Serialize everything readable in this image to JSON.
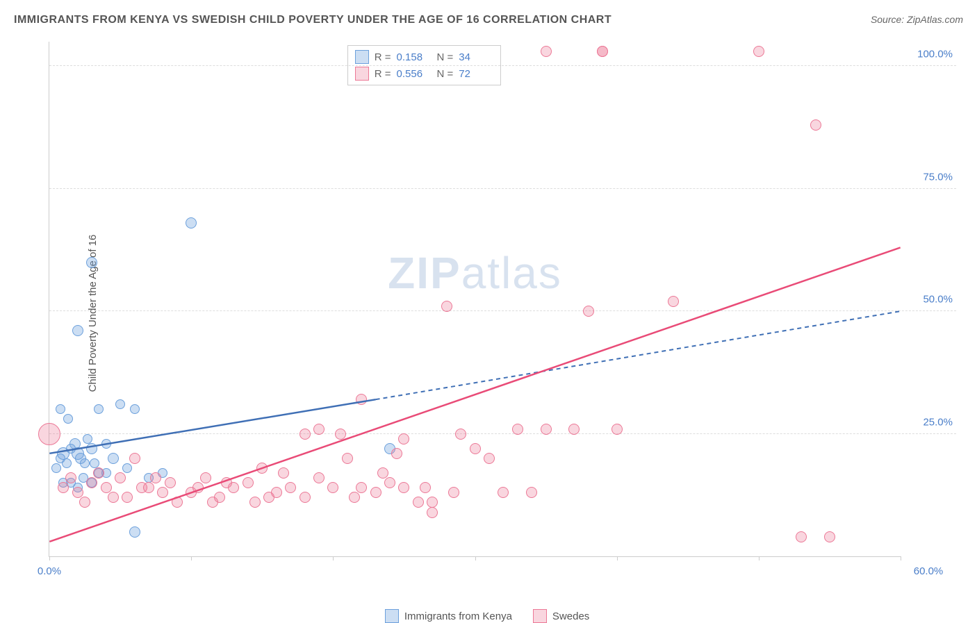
{
  "title": "IMMIGRANTS FROM KENYA VS SWEDISH CHILD POVERTY UNDER THE AGE OF 16 CORRELATION CHART",
  "source": "Source: ZipAtlas.com",
  "ylabel": "Child Poverty Under the Age of 16",
  "watermark_a": "ZIP",
  "watermark_b": "atlas",
  "chart": {
    "type": "scatter",
    "xlim": [
      0,
      60
    ],
    "ylim": [
      0,
      105
    ],
    "yticks": [
      25,
      50,
      75,
      100
    ],
    "ytick_labels": [
      "25.0%",
      "50.0%",
      "75.0%",
      "100.0%"
    ],
    "xticks": [
      0,
      10,
      20,
      30,
      40,
      50,
      60
    ],
    "xlabel_start": "0.0%",
    "xlabel_end": "60.0%",
    "background_color": "#ffffff",
    "grid_color": "#dddddd",
    "axis_color": "#cccccc"
  },
  "series": [
    {
      "name": "Immigrants from Kenya",
      "fill": "rgba(108,160,220,0.35)",
      "stroke": "#6ca0dc",
      "r_value": "0.158",
      "n_value": "34",
      "trend": {
        "x1": 0,
        "y1": 21,
        "x2": 23,
        "y2": 32,
        "extend_x": 60,
        "extend_y": 50,
        "color": "#3f6fb5",
        "dash": true
      },
      "points": [
        {
          "x": 0.5,
          "y": 18,
          "r": 7
        },
        {
          "x": 0.8,
          "y": 20,
          "r": 7
        },
        {
          "x": 1,
          "y": 21,
          "r": 9
        },
        {
          "x": 1.2,
          "y": 19,
          "r": 7
        },
        {
          "x": 1.5,
          "y": 22,
          "r": 7
        },
        {
          "x": 1.8,
          "y": 23,
          "r": 8
        },
        {
          "x": 2,
          "y": 21,
          "r": 9
        },
        {
          "x": 2.2,
          "y": 20,
          "r": 8
        },
        {
          "x": 2.5,
          "y": 19,
          "r": 7
        },
        {
          "x": 3,
          "y": 22,
          "r": 8
        },
        {
          "x": 3.5,
          "y": 17,
          "r": 7
        },
        {
          "x": 1.3,
          "y": 28,
          "r": 7
        },
        {
          "x": 0.8,
          "y": 30,
          "r": 7
        },
        {
          "x": 2,
          "y": 46,
          "r": 8
        },
        {
          "x": 3,
          "y": 60,
          "r": 8
        },
        {
          "x": 10,
          "y": 68,
          "r": 8
        },
        {
          "x": 1,
          "y": 15,
          "r": 7
        },
        {
          "x": 2,
          "y": 14,
          "r": 7
        },
        {
          "x": 3,
          "y": 15,
          "r": 7
        },
        {
          "x": 4,
          "y": 17,
          "r": 7
        },
        {
          "x": 3.5,
          "y": 30,
          "r": 7
        },
        {
          "x": 5,
          "y": 31,
          "r": 7
        },
        {
          "x": 6,
          "y": 5,
          "r": 8
        },
        {
          "x": 6,
          "y": 30,
          "r": 7
        },
        {
          "x": 4.5,
          "y": 20,
          "r": 8
        },
        {
          "x": 5.5,
          "y": 18,
          "r": 7
        },
        {
          "x": 7,
          "y": 16,
          "r": 7
        },
        {
          "x": 8,
          "y": 17,
          "r": 7
        },
        {
          "x": 1.5,
          "y": 15,
          "r": 7
        },
        {
          "x": 2.7,
          "y": 24,
          "r": 7
        },
        {
          "x": 24,
          "y": 22,
          "r": 8
        },
        {
          "x": 4,
          "y": 23,
          "r": 7
        },
        {
          "x": 3.2,
          "y": 19,
          "r": 7
        },
        {
          "x": 2.4,
          "y": 16,
          "r": 7
        }
      ]
    },
    {
      "name": "Swedes",
      "fill": "rgba(236,120,150,0.30)",
      "stroke": "#ec7896",
      "r_value": "0.556",
      "n_value": "72",
      "trend": {
        "x1": 0,
        "y1": 3,
        "x2": 60,
        "y2": 63,
        "color": "#e94b77",
        "dash": false
      },
      "points": [
        {
          "x": 0,
          "y": 25,
          "r": 16
        },
        {
          "x": 1,
          "y": 14,
          "r": 8
        },
        {
          "x": 2,
          "y": 13,
          "r": 8
        },
        {
          "x": 3,
          "y": 15,
          "r": 8
        },
        {
          "x": 4,
          "y": 14,
          "r": 8
        },
        {
          "x": 5,
          "y": 16,
          "r": 8
        },
        {
          "x": 5.5,
          "y": 12,
          "r": 8
        },
        {
          "x": 6,
          "y": 20,
          "r": 8
        },
        {
          "x": 7,
          "y": 14,
          "r": 8
        },
        {
          "x": 8,
          "y": 13,
          "r": 8
        },
        {
          "x": 8.5,
          "y": 15,
          "r": 8
        },
        {
          "x": 9,
          "y": 11,
          "r": 8
        },
        {
          "x": 10,
          "y": 13,
          "r": 8
        },
        {
          "x": 10.5,
          "y": 14,
          "r": 8
        },
        {
          "x": 11,
          "y": 16,
          "r": 8
        },
        {
          "x": 12,
          "y": 12,
          "r": 8
        },
        {
          "x": 13,
          "y": 14,
          "r": 8
        },
        {
          "x": 14,
          "y": 15,
          "r": 8
        },
        {
          "x": 14.5,
          "y": 11,
          "r": 8
        },
        {
          "x": 15,
          "y": 18,
          "r": 8
        },
        {
          "x": 16,
          "y": 13,
          "r": 8
        },
        {
          "x": 17,
          "y": 14,
          "r": 8
        },
        {
          "x": 18,
          "y": 12,
          "r": 8
        },
        {
          "x": 18,
          "y": 25,
          "r": 8
        },
        {
          "x": 19,
          "y": 16,
          "r": 8
        },
        {
          "x": 19,
          "y": 26,
          "r": 8
        },
        {
          "x": 20,
          "y": 14,
          "r": 8
        },
        {
          "x": 20.5,
          "y": 25,
          "r": 8
        },
        {
          "x": 21,
          "y": 20,
          "r": 8
        },
        {
          "x": 22,
          "y": 14,
          "r": 8
        },
        {
          "x": 22,
          "y": 32,
          "r": 8
        },
        {
          "x": 23,
          "y": 13,
          "r": 8
        },
        {
          "x": 24,
          "y": 15,
          "r": 8
        },
        {
          "x": 24.5,
          "y": 21,
          "r": 8
        },
        {
          "x": 25,
          "y": 24,
          "r": 8
        },
        {
          "x": 25,
          "y": 14,
          "r": 8
        },
        {
          "x": 26,
          "y": 11,
          "r": 8
        },
        {
          "x": 27,
          "y": 9,
          "r": 8
        },
        {
          "x": 28,
          "y": 51,
          "r": 8
        },
        {
          "x": 29,
          "y": 25,
          "r": 8
        },
        {
          "x": 30,
          "y": 22,
          "r": 8
        },
        {
          "x": 31,
          "y": 20,
          "r": 8
        },
        {
          "x": 32,
          "y": 13,
          "r": 8
        },
        {
          "x": 33,
          "y": 26,
          "r": 8
        },
        {
          "x": 35,
          "y": 26,
          "r": 8
        },
        {
          "x": 35,
          "y": 103,
          "r": 8
        },
        {
          "x": 37,
          "y": 26,
          "r": 8
        },
        {
          "x": 38,
          "y": 50,
          "r": 8
        },
        {
          "x": 39,
          "y": 103,
          "r": 8
        },
        {
          "x": 39,
          "y": 103,
          "r": 8
        },
        {
          "x": 40,
          "y": 26,
          "r": 8
        },
        {
          "x": 44,
          "y": 52,
          "r": 8
        },
        {
          "x": 50,
          "y": 103,
          "r": 8
        },
        {
          "x": 53,
          "y": 4,
          "r": 8
        },
        {
          "x": 54,
          "y": 88,
          "r": 8
        },
        {
          "x": 55,
          "y": 4,
          "r": 8
        },
        {
          "x": 3.5,
          "y": 17,
          "r": 8
        },
        {
          "x": 4.5,
          "y": 12,
          "r": 8
        },
        {
          "x": 6.5,
          "y": 14,
          "r": 8
        },
        {
          "x": 7.5,
          "y": 16,
          "r": 8
        },
        {
          "x": 11.5,
          "y": 11,
          "r": 8
        },
        {
          "x": 12.5,
          "y": 15,
          "r": 8
        },
        {
          "x": 15.5,
          "y": 12,
          "r": 8
        },
        {
          "x": 16.5,
          "y": 17,
          "r": 8
        },
        {
          "x": 21.5,
          "y": 12,
          "r": 8
        },
        {
          "x": 23.5,
          "y": 17,
          "r": 8
        },
        {
          "x": 26.5,
          "y": 14,
          "r": 8
        },
        {
          "x": 27,
          "y": 11,
          "r": 8
        },
        {
          "x": 28.5,
          "y": 13,
          "r": 8
        },
        {
          "x": 34,
          "y": 13,
          "r": 8
        },
        {
          "x": 1.5,
          "y": 16,
          "r": 8
        },
        {
          "x": 2.5,
          "y": 11,
          "r": 8
        }
      ]
    }
  ],
  "legend_bottom": [
    {
      "label": "Immigrants from Kenya",
      "fill": "rgba(108,160,220,0.35)",
      "stroke": "#6ca0dc"
    },
    {
      "label": "Swedes",
      "fill": "rgba(236,120,150,0.30)",
      "stroke": "#ec7896"
    }
  ]
}
